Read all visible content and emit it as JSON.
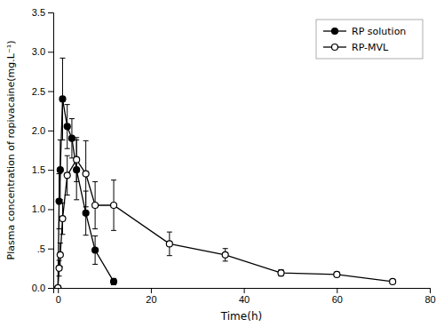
{
  "chart_data": {
    "type": "line",
    "xlabel": "Time(h)",
    "ylabel": "Plasma concentration of ropivacaine(mg.L⁻¹)",
    "series": [
      {
        "name": "RP solution",
        "color": "#000000",
        "marker": "filled-circle",
        "x": [
          0,
          0.25,
          0.5,
          1,
          2,
          3,
          4,
          6,
          8,
          12
        ],
        "values": [
          0.0,
          1.1,
          1.5,
          2.4,
          2.05,
          1.9,
          1.5,
          0.95,
          0.48,
          0.08
        ],
        "yerr": [
          0.0,
          0.35,
          0.38,
          0.52,
          0.28,
          0.25,
          0.38,
          0.28,
          0.18,
          0.04
        ]
      },
      {
        "name": "RP-MVL",
        "color": "#000000",
        "marker": "open-circle",
        "x": [
          0,
          0.25,
          0.5,
          1,
          2,
          4,
          6,
          8,
          12,
          24,
          36,
          48,
          60,
          72
        ],
        "values": [
          0.0,
          0.25,
          0.42,
          0.88,
          1.43,
          1.63,
          1.45,
          1.05,
          1.05,
          0.56,
          0.42,
          0.19,
          0.17,
          0.08
        ],
        "yerr": [
          0.0,
          0.1,
          0.15,
          0.2,
          0.25,
          0.28,
          0.42,
          0.3,
          0.32,
          0.15,
          0.08,
          0.04,
          0.03,
          0.025
        ]
      }
    ],
    "xlim": [
      -1,
      80
    ],
    "ylim": [
      0,
      3.5
    ],
    "xticks": [
      0,
      20,
      40,
      60,
      80
    ],
    "yticks": [
      {
        "value": 0.0,
        "label": "0.0"
      },
      {
        "value": 0.5,
        "label": ".5"
      },
      {
        "value": 1.0,
        "label": "1.0"
      },
      1.5,
      {
        "value": 2.0,
        "label": "2.0"
      },
      2.5,
      {
        "value": 3.0,
        "label": "3.0"
      },
      3.5
    ],
    "legend": "upper-right"
  }
}
